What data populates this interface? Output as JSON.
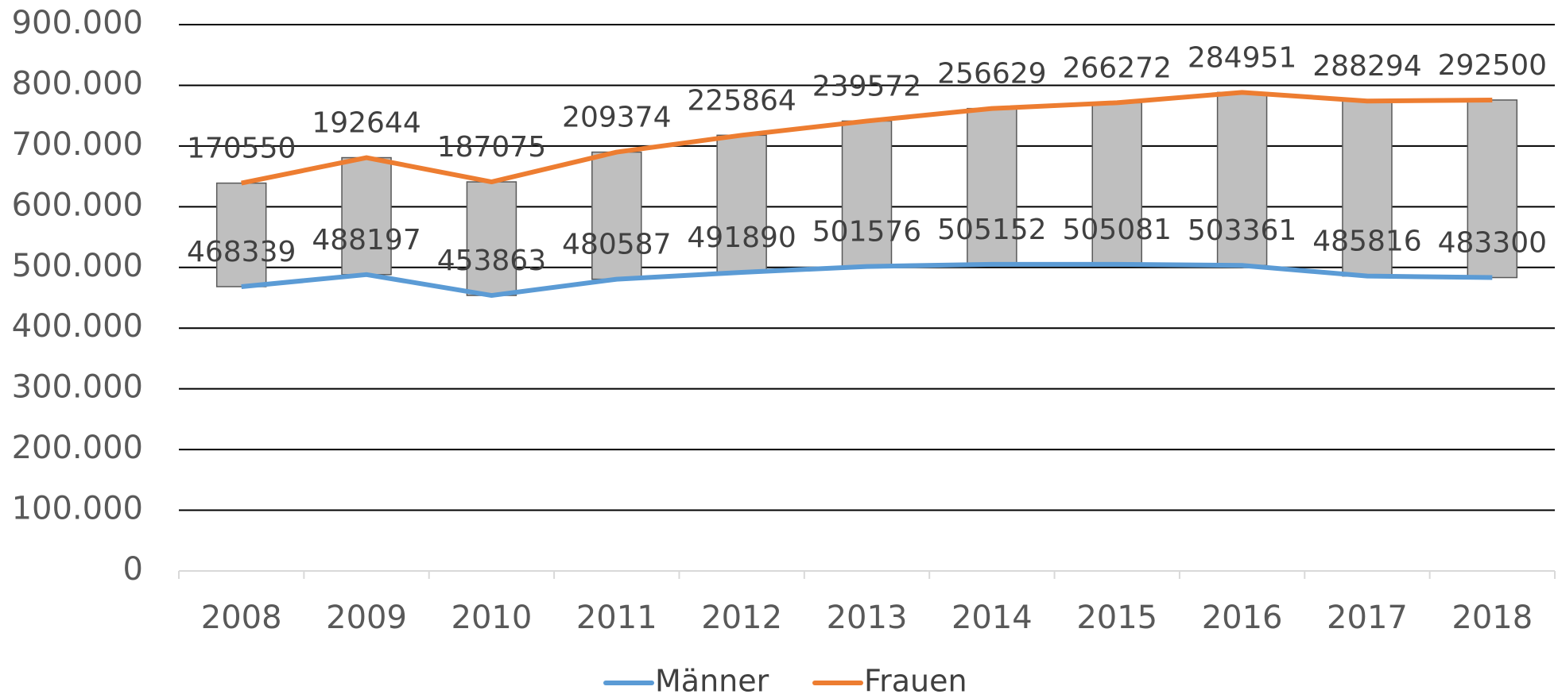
{
  "chart_data": {
    "type": "line",
    "stacked": true,
    "categories": [
      "2008",
      "2009",
      "2010",
      "2011",
      "2012",
      "2013",
      "2014",
      "2015",
      "2016",
      "2017",
      "2018"
    ],
    "series": [
      {
        "name": "Männer",
        "color": "#5b9bd5",
        "values": [
          468339,
          488197,
          453863,
          480587,
          491890,
          501576,
          505152,
          505081,
          503361,
          485816,
          483300
        ]
      },
      {
        "name": "Frauen",
        "color": "#ed7d31",
        "values": [
          170550,
          192644,
          187075,
          209374,
          225864,
          239572,
          256629,
          266272,
          284951,
          288294,
          292500
        ]
      }
    ],
    "up_down_bars": true,
    "ylim": [
      0,
      900000
    ],
    "yticks": [
      0,
      {
        "value": 100000,
        "label": "100.000"
      },
      {
        "value": 200000,
        "label": "200.000"
      },
      {
        "value": 300000,
        "label": "300.000"
      },
      {
        "value": 400000,
        "label": "400.000"
      },
      {
        "value": 500000,
        "label": "500.000"
      },
      {
        "value": 600000,
        "label": "600.000"
      },
      {
        "value": 700000,
        "label": "700.000"
      },
      {
        "value": 800000,
        "label": "800.000"
      },
      {
        "value": 900000,
        "label": "900.000"
      }
    ],
    "grid": true,
    "legend": "bottom"
  }
}
